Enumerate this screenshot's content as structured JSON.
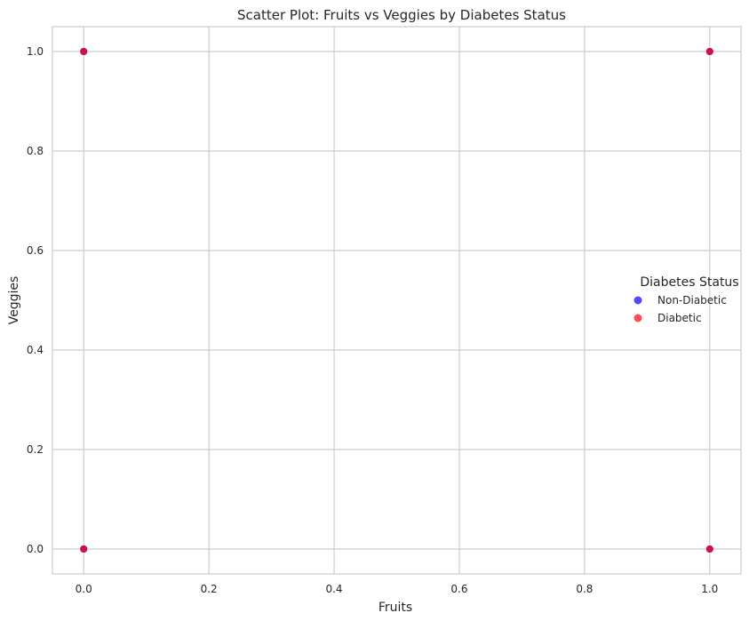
{
  "chart_data": {
    "type": "scatter",
    "title": "Scatter Plot: Fruits vs Veggies by Diabetes Status",
    "xlabel": "Fruits",
    "ylabel": "Veggies",
    "xlim": [
      -0.05,
      1.05
    ],
    "ylim": [
      -0.05,
      1.05
    ],
    "xticks": [
      "0.0",
      "0.2",
      "0.4",
      "0.6",
      "0.8",
      "1.0"
    ],
    "yticks": [
      "0.0",
      "0.2",
      "0.4",
      "0.6",
      "0.8",
      "1.0"
    ],
    "grid": true,
    "legend": {
      "title": "Diabetes Status",
      "placement": "center-right"
    },
    "series": [
      {
        "name": "Non-Diabetic",
        "color": "#0000ff",
        "points": [
          [
            0,
            0
          ],
          [
            0,
            1
          ],
          [
            1,
            0
          ],
          [
            1,
            1
          ]
        ]
      },
      {
        "name": "Diabetic",
        "color": "#ff0000",
        "points": [
          [
            0,
            0
          ],
          [
            0,
            1
          ],
          [
            1,
            0
          ],
          [
            1,
            1
          ]
        ]
      }
    ],
    "point_alpha": 0.7
  }
}
